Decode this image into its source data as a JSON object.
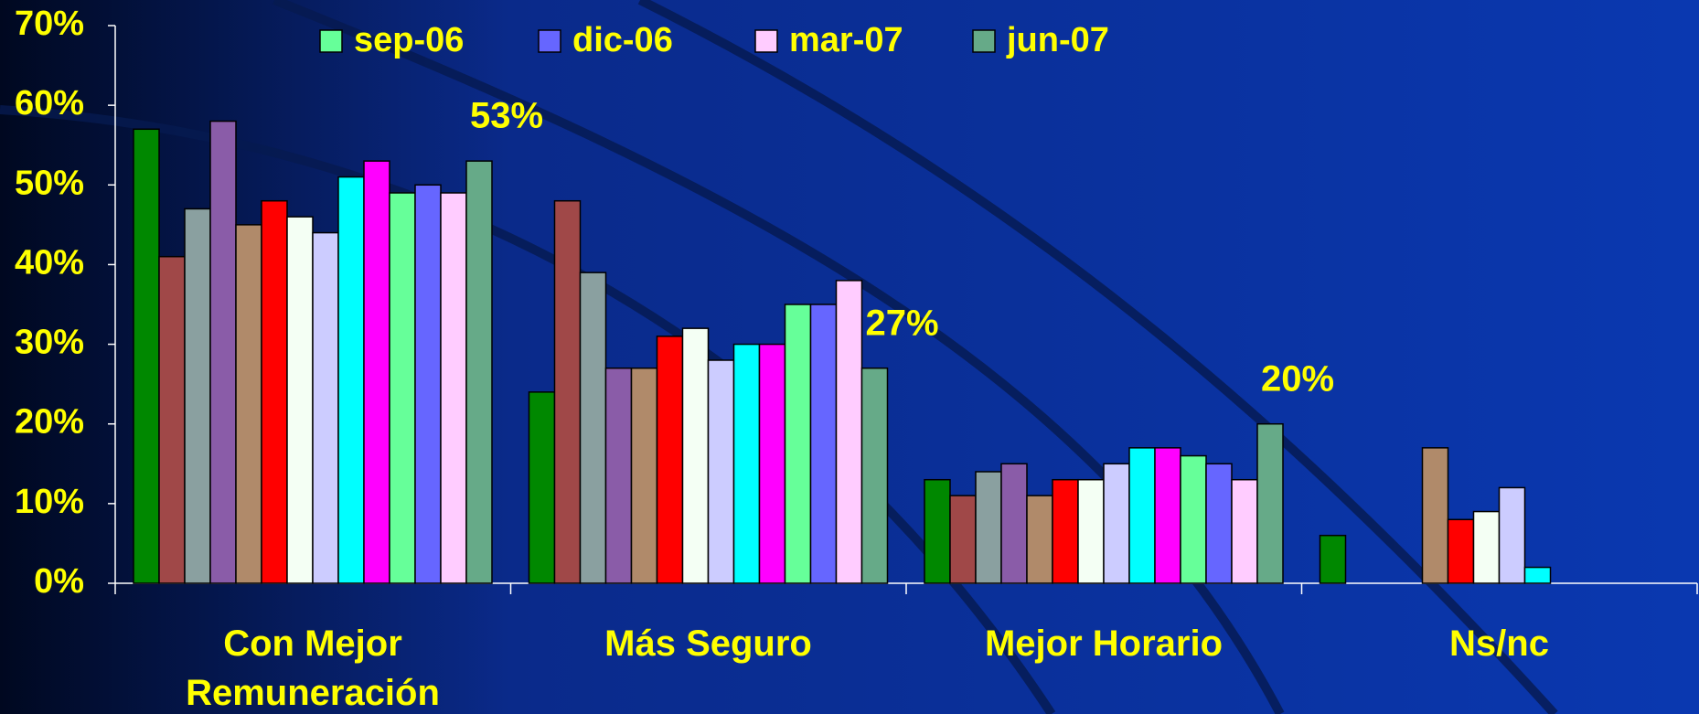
{
  "chart_data": {
    "type": "bar",
    "categories": [
      "Con Mejor Remuneración",
      "Más Seguro",
      "Mejor Horario",
      "Ns/nc"
    ],
    "series": [
      {
        "color": "#008800",
        "values": [
          57,
          24,
          13,
          6
        ]
      },
      {
        "color": "#a04848",
        "values": [
          41,
          48,
          11,
          null
        ]
      },
      {
        "color": "#8aa0a0",
        "values": [
          47,
          39,
          14,
          null
        ]
      },
      {
        "color": "#8a5ca8",
        "values": [
          58,
          27,
          15,
          null
        ]
      },
      {
        "color": "#b08a6a",
        "values": [
          45,
          27,
          11,
          17
        ]
      },
      {
        "color": "#ff0000",
        "values": [
          48,
          31,
          13,
          8
        ]
      },
      {
        "color": "#f4fff4",
        "values": [
          46,
          32,
          13,
          9
        ]
      },
      {
        "color": "#ccccff",
        "values": [
          44,
          28,
          15,
          12
        ]
      },
      {
        "color": "#00ffff",
        "values": [
          51,
          30,
          17,
          2
        ]
      },
      {
        "color": "#ff00ff",
        "values": [
          53,
          30,
          17,
          null
        ]
      },
      {
        "name": "sep-06",
        "color": "#66ff99",
        "values": [
          49,
          35,
          16,
          null
        ]
      },
      {
        "name": "dic-06",
        "color": "#6666ff",
        "values": [
          50,
          35,
          15,
          null
        ]
      },
      {
        "name": "mar-07",
        "color": "#ffccff",
        "values": [
          49,
          38,
          13,
          null
        ]
      },
      {
        "name": "jun-07",
        "color": "#66aa88",
        "values": [
          53,
          27,
          20,
          null
        ],
        "value_labels": [
          "53%",
          "27%",
          "20%",
          null
        ]
      }
    ],
    "ylim": [
      0,
      70
    ],
    "yticks": [
      {
        "value": 0,
        "label": "0%"
      },
      {
        "value": 10,
        "label": "10%"
      },
      {
        "value": 20,
        "label": "20%"
      },
      {
        "value": 30,
        "label": "30%"
      },
      {
        "value": 40,
        "label": "40%"
      },
      {
        "value": 50,
        "label": "50%"
      },
      {
        "value": 60,
        "label": "60%"
      },
      {
        "value": 70,
        "label": "70%"
      }
    ]
  }
}
